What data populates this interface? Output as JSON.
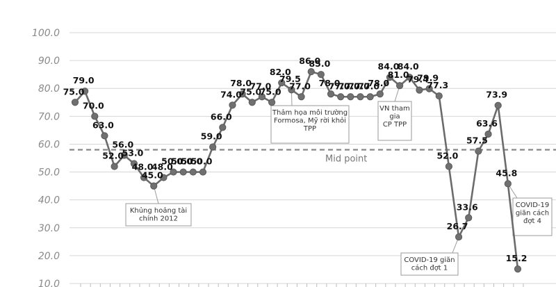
{
  "chart_data": {
    "type": "line",
    "title": "",
    "xlabel": "",
    "ylabel": "",
    "ylim": [
      10,
      100
    ],
    "y_ticks": [
      "100.0",
      "90.0",
      "80.0",
      "70.0",
      "60.0",
      "50.0",
      "40.0",
      "30.0",
      "20.0",
      "10.0"
    ],
    "grid": true,
    "series": [
      {
        "values": [
          75,
          79,
          70,
          63,
          52,
          56,
          53,
          48,
          45,
          48,
          50,
          50,
          50,
          50,
          59,
          66,
          74,
          78,
          75,
          77,
          75,
          82,
          79.5,
          77,
          86,
          85,
          78,
          77,
          77,
          77,
          77,
          78,
          84,
          81,
          84,
          79.4,
          79.9,
          77.3,
          52,
          26.7,
          33.6,
          57.5,
          63.6,
          73.9,
          45.8,
          15.2
        ],
        "labels": [
          "75.0",
          "79.0",
          "70.0",
          "63.0",
          "52.0",
          "56.0",
          "53.0",
          "48.0",
          "45.0",
          "48.0",
          "50.0",
          "50.0",
          "50.0",
          "50.0",
          "59.0",
          "66.0",
          "74.0",
          "78.0",
          "75.0",
          "77.0",
          "75.0",
          "82.0",
          "79.5",
          "77.0",
          "86.0",
          "85.0",
          "78.0",
          "77.0",
          "77.0",
          "77.0",
          "77.0",
          "78.0",
          "84.0",
          "81.0",
          "84.0",
          "79.4",
          "79.9",
          "77.3",
          "52.0",
          "26.7",
          "33.6",
          "57.5",
          "63.6",
          "73.9",
          "45.8",
          "15.2"
        ],
        "color": "#6b6b6b"
      }
    ],
    "reference_line": {
      "value": 58,
      "label": "Mid point"
    },
    "annotations": [
      {
        "lines": [
          "Khủng hoảng tài",
          "chính 2012"
        ],
        "point_index": 8
      },
      {
        "lines": [
          "Thảm họa môi trường",
          "Formosa, Mỹ rời khỏi",
          "TPP"
        ],
        "point_index": 22
      },
      {
        "lines": [
          "VN tham",
          "gia",
          "CP TPP"
        ],
        "point_index": 33
      },
      {
        "lines": [
          "COVID-19 giãn",
          "cách đợt 1"
        ],
        "point_index": 39
      },
      {
        "lines": [
          "COVID-19",
          "giãn cách",
          "đợt 4"
        ],
        "point_index": 44
      }
    ]
  }
}
